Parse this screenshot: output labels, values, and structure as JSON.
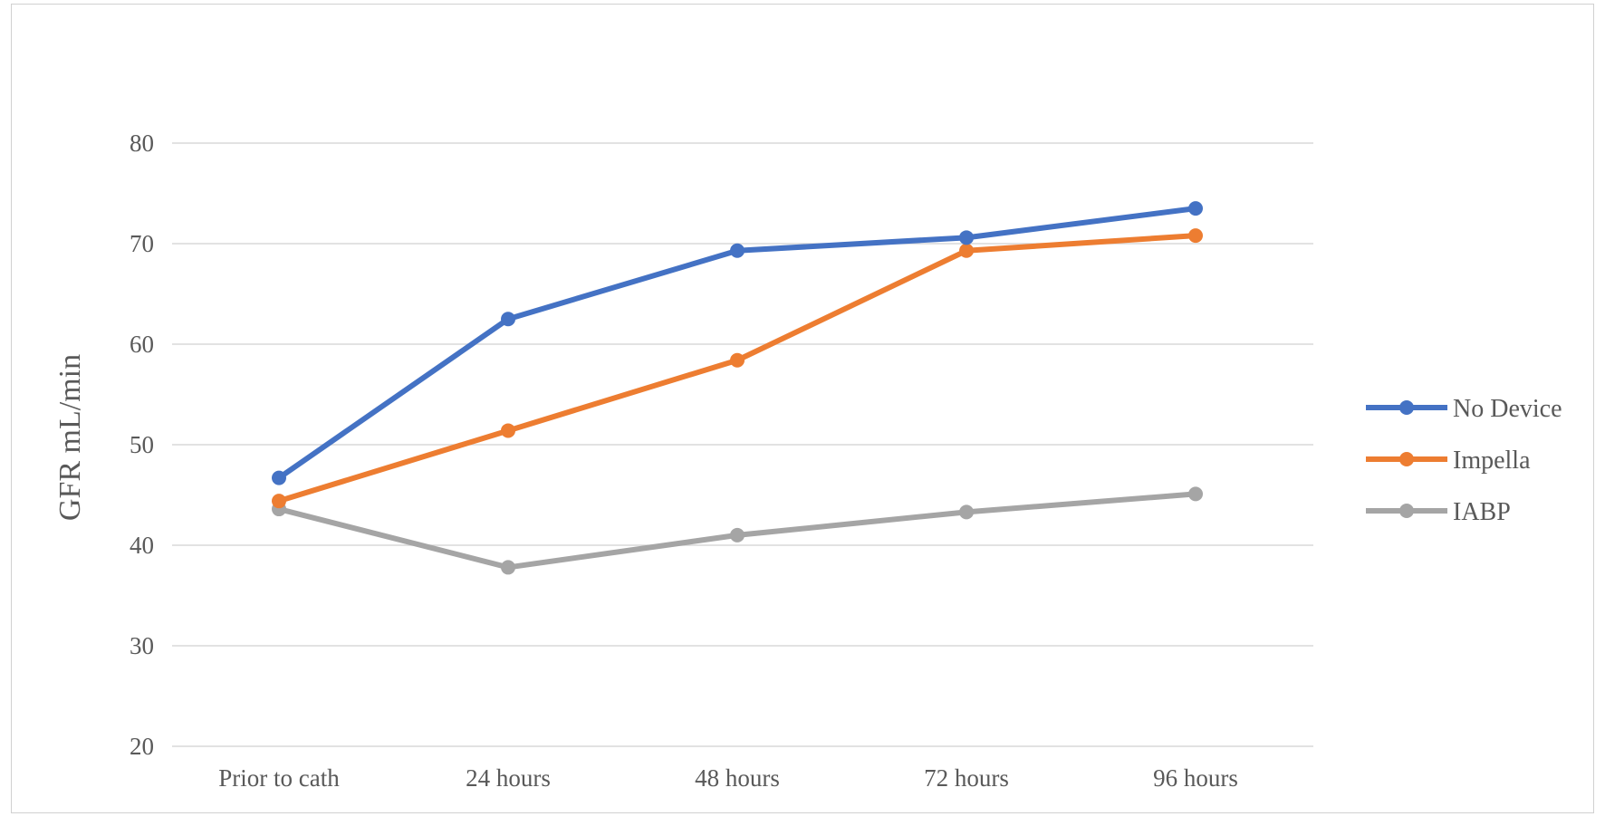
{
  "chart_data": {
    "type": "line",
    "title": "",
    "xlabel": "",
    "ylabel": "GFR mL/min",
    "categories": [
      "Prior to cath",
      "24 hours",
      "48 hours",
      "72 hours",
      "96 hours"
    ],
    "ylim": [
      20,
      80
    ],
    "yticks": [
      20,
      30,
      40,
      50,
      60,
      70,
      80
    ],
    "grid": true,
    "legend_position": "right",
    "series": [
      {
        "name": "No Device",
        "color": "#4472c4",
        "values": [
          46.7,
          62.5,
          69.3,
          70.6,
          73.5
        ]
      },
      {
        "name": "Impella",
        "color": "#ed7d31",
        "values": [
          44.4,
          51.4,
          58.4,
          69.3,
          70.8
        ]
      },
      {
        "name": "IABP",
        "color": "#a5a5a5",
        "values": [
          43.6,
          37.8,
          41.0,
          43.3,
          45.1
        ]
      }
    ]
  }
}
